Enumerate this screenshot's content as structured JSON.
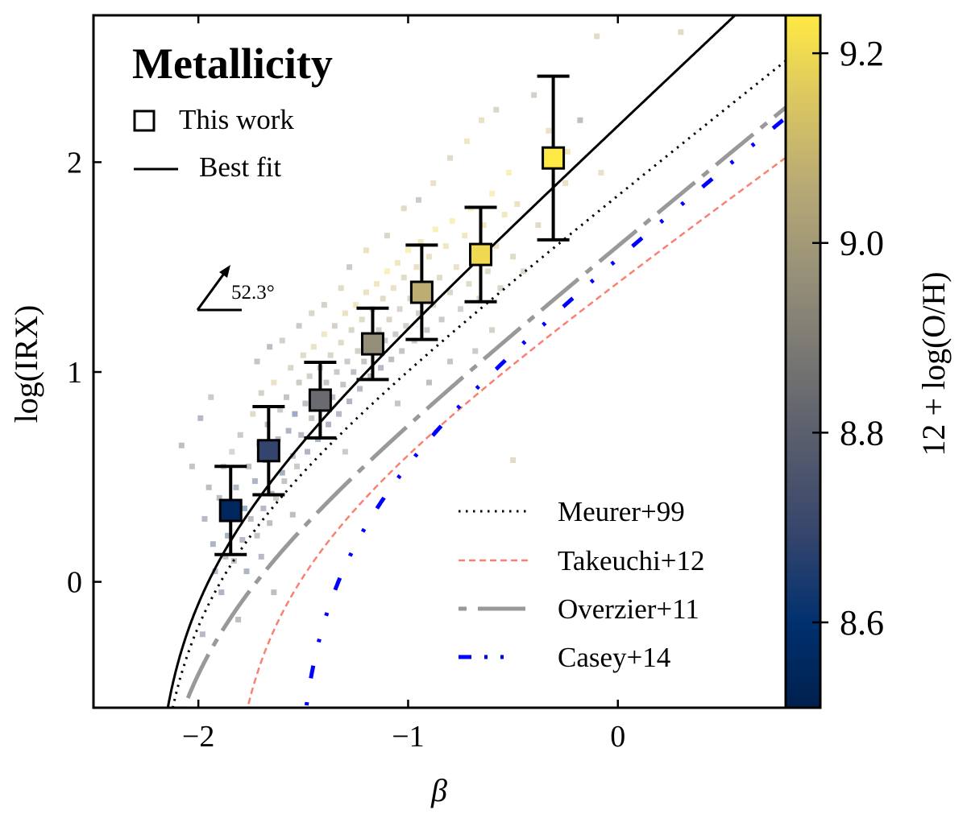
{
  "chart_data": {
    "type": "scatter",
    "title": "Metallicity",
    "xlabel": "β",
    "ylabel": "log(IRX)",
    "xlim": [
      -2.5,
      0.8
    ],
    "ylim": [
      -0.6,
      2.7
    ],
    "xticks": [
      {
        "value": -2,
        "label": "−2"
      },
      {
        "value": -1,
        "label": "−1"
      },
      {
        "value": 0,
        "label": "0"
      }
    ],
    "yticks": [
      {
        "value": 0,
        "label": "0"
      },
      {
        "value": 1,
        "label": "1"
      },
      {
        "value": 2,
        "label": "2"
      }
    ],
    "grid": false,
    "colorbar": {
      "label": "12 + log(O/H)",
      "colormap": "cividis",
      "range": [
        8.51,
        9.24
      ],
      "ticks": [
        {
          "value": 8.6,
          "label": "8.6"
        },
        {
          "value": 8.8,
          "label": "8.8"
        },
        {
          "value": 9.0,
          "label": "9.0"
        },
        {
          "value": 9.2,
          "label": "9.2"
        }
      ]
    },
    "annotation": {
      "text": "52.3°",
      "kind": "angle-arrow"
    },
    "binned_points": {
      "name": "This work",
      "marker": "square",
      "points": [
        {
          "beta": -1.846,
          "irx": 0.34,
          "err": 0.21,
          "metallicity": 8.55
        },
        {
          "beta": -1.665,
          "irx": 0.625,
          "err": 0.21,
          "metallicity": 8.69
        },
        {
          "beta": -1.419,
          "irx": 0.866,
          "err": 0.18,
          "metallicity": 8.84
        },
        {
          "beta": -1.169,
          "irx": 1.134,
          "err": 0.17,
          "metallicity": 8.96
        },
        {
          "beta": -0.935,
          "irx": 1.38,
          "err": 0.225,
          "metallicity": 9.07
        },
        {
          "beta": -0.654,
          "irx": 1.56,
          "err": 0.225,
          "metallicity": 9.2
        },
        {
          "beta": -0.308,
          "irx": 2.02,
          "err": 0.39,
          "metallicity": 9.24
        }
      ]
    },
    "curves": [
      {
        "name": "Best fit",
        "style": "solid",
        "color": "#000000",
        "a": 5.25,
        "b": 2.35,
        "c": 0.076
      },
      {
        "name": "Meurer+99",
        "style": "dotted",
        "color": "#000000",
        "a": 4.43,
        "b": 1.99,
        "c": 0.076
      },
      {
        "name": "Takeuchi+12",
        "style": "dashed",
        "color": "#fa8072",
        "a": 3.42,
        "b": 1.82,
        "c": 0.076
      },
      {
        "name": "Overzier+11",
        "style": "longdash-dot",
        "color": "#999999",
        "a": 4.64,
        "b": 2.05,
        "c": -0.25
      },
      {
        "name": "Casey+14",
        "style": "dash-dot-dot",
        "color": "#0000ff",
        "a": 3.16,
        "b": 2.04,
        "c": 0.3
      }
    ],
    "curve_model": "log(IRX) = log10(10^(0.4*(a + b*β)) - 1) + c",
    "legend_upper_left": [
      {
        "label": "This work",
        "symbol": "square"
      },
      {
        "label": "Best fit",
        "symbol": "solid-line"
      }
    ],
    "legend_lower_right": [
      {
        "label": "Meurer+99"
      },
      {
        "label": "Takeuchi+12"
      },
      {
        "label": "Overzier+11"
      },
      {
        "label": "Casey+14"
      }
    ],
    "scatter_seed": {
      "description": "individual galaxies (translucent squares, colored by metallicity)",
      "points": [
        [
          -1.97,
          0.3,
          8.75
        ],
        [
          -1.93,
          0.18,
          8.7
        ],
        [
          -1.9,
          0.4,
          8.8
        ],
        [
          -1.88,
          0.55,
          8.85
        ],
        [
          -1.86,
          0.22,
          8.65
        ],
        [
          -1.84,
          0.62,
          9.0
        ],
        [
          -1.82,
          0.45,
          8.72
        ],
        [
          -1.8,
          0.7,
          8.9
        ],
        [
          -1.78,
          0.35,
          8.6
        ],
        [
          -1.76,
          0.55,
          8.8
        ],
        [
          -1.74,
          0.8,
          9.05
        ],
        [
          -1.73,
          0.48,
          8.7
        ],
        [
          -1.71,
          0.66,
          8.85
        ],
        [
          -1.7,
          0.9,
          8.95
        ],
        [
          -1.68,
          0.58,
          8.6
        ],
        [
          -1.67,
          0.75,
          8.8
        ],
        [
          -1.65,
          0.42,
          8.7
        ],
        [
          -1.64,
          0.95,
          9.1
        ],
        [
          -1.62,
          0.68,
          8.75
        ],
        [
          -1.61,
          0.82,
          8.9
        ],
        [
          -1.6,
          0.52,
          8.65
        ],
        [
          -1.58,
          0.88,
          8.85
        ],
        [
          -1.57,
          0.72,
          8.7
        ],
        [
          -1.56,
          1.02,
          9.0
        ],
        [
          -1.55,
          0.6,
          8.8
        ],
        [
          -1.54,
          0.8,
          8.6
        ],
        [
          -1.52,
          0.95,
          8.9
        ],
        [
          -1.51,
          0.7,
          8.75
        ],
        [
          -1.5,
          1.08,
          9.05
        ],
        [
          -1.49,
          0.85,
          8.8
        ],
        [
          -1.48,
          0.62,
          8.7
        ],
        [
          -1.47,
          0.98,
          8.95
        ],
        [
          -1.46,
          0.78,
          8.85
        ],
        [
          -1.45,
          1.12,
          9.1
        ],
        [
          -1.44,
          0.9,
          8.8
        ],
        [
          -1.43,
          0.68,
          8.65
        ],
        [
          -1.42,
          1.02,
          8.9
        ],
        [
          -1.41,
          0.84,
          8.75
        ],
        [
          -1.4,
          1.18,
          9.15
        ],
        [
          -1.39,
          0.95,
          8.85
        ],
        [
          -1.38,
          0.75,
          8.7
        ],
        [
          -1.37,
          1.08,
          9.0
        ],
        [
          -1.36,
          0.88,
          8.8
        ],
        [
          -1.35,
          1.22,
          8.95
        ],
        [
          -1.34,
          1.0,
          8.9
        ],
        [
          -1.33,
          0.8,
          8.75
        ],
        [
          -1.32,
          1.14,
          9.05
        ],
        [
          -1.31,
          0.94,
          8.85
        ],
        [
          -1.3,
          1.28,
          9.1
        ],
        [
          -1.29,
          1.05,
          8.9
        ],
        [
          -1.28,
          0.86,
          8.7
        ],
        [
          -1.27,
          1.2,
          9.0
        ],
        [
          -1.26,
          1.0,
          8.8
        ],
        [
          -1.25,
          1.32,
          9.15
        ],
        [
          -1.24,
          1.1,
          8.95
        ],
        [
          -1.23,
          0.92,
          8.75
        ],
        [
          -1.22,
          1.25,
          9.05
        ],
        [
          -1.21,
          1.05,
          8.85
        ],
        [
          -1.2,
          1.38,
          9.1
        ],
        [
          -1.19,
          1.15,
          8.9
        ],
        [
          -1.18,
          0.98,
          8.8
        ],
        [
          -1.17,
          1.3,
          9.0
        ],
        [
          -1.16,
          1.1,
          8.85
        ],
        [
          -1.15,
          1.42,
          9.15
        ],
        [
          -1.14,
          1.2,
          8.95
        ],
        [
          -1.13,
          1.02,
          8.75
        ],
        [
          -1.12,
          1.35,
          9.05
        ],
        [
          -1.11,
          1.15,
          8.9
        ],
        [
          -1.1,
          1.48,
          9.2
        ],
        [
          -1.09,
          1.25,
          9.0
        ],
        [
          -1.08,
          1.06,
          8.8
        ],
        [
          -1.07,
          1.4,
          9.1
        ],
        [
          -1.06,
          1.18,
          8.9
        ],
        [
          -1.05,
          1.52,
          9.15
        ],
        [
          -1.04,
          1.3,
          9.0
        ],
        [
          -1.03,
          1.1,
          8.85
        ],
        [
          -1.02,
          1.45,
          9.05
        ],
        [
          -1.01,
          1.22,
          8.95
        ],
        [
          -1.0,
          1.58,
          9.2
        ],
        [
          -0.99,
          1.35,
          9.0
        ],
        [
          -0.97,
          1.15,
          8.85
        ],
        [
          -0.96,
          1.5,
          9.1
        ],
        [
          -0.95,
          1.28,
          8.95
        ],
        [
          -0.94,
          1.62,
          9.15
        ],
        [
          -0.92,
          1.4,
          9.05
        ],
        [
          -0.91,
          1.2,
          8.9
        ],
        [
          -0.9,
          1.55,
          9.1
        ],
        [
          -0.88,
          1.32,
          9.0
        ],
        [
          -0.87,
          1.68,
          9.2
        ],
        [
          -0.85,
          1.45,
          9.05
        ],
        [
          -0.84,
          1.25,
          8.9
        ],
        [
          -0.82,
          1.6,
          9.15
        ],
        [
          -0.8,
          1.38,
          9.0
        ],
        [
          -0.79,
          1.72,
          9.2
        ],
        [
          -0.77,
          1.5,
          9.1
        ],
        [
          -0.75,
          1.3,
          8.95
        ],
        [
          -0.73,
          1.65,
          9.15
        ],
        [
          -0.71,
          1.42,
          9.05
        ],
        [
          -0.7,
          1.78,
          9.2
        ],
        [
          -0.68,
          1.55,
          9.1
        ],
        [
          -0.66,
          1.35,
          9.0
        ],
        [
          -0.64,
          1.7,
          9.15
        ],
        [
          -0.62,
          1.48,
          9.05
        ],
        [
          -0.6,
          1.85,
          9.2
        ],
        [
          -0.58,
          1.6,
          9.1
        ],
        [
          -0.56,
          1.4,
          9.0
        ],
        [
          -0.54,
          1.75,
          9.15
        ],
        [
          -0.52,
          1.95,
          9.2
        ],
        [
          -0.5,
          1.55,
          9.05
        ],
        [
          -0.48,
          1.8,
          9.1
        ],
        [
          -1.95,
          0.45,
          8.8
        ],
        [
          -1.92,
          0.05,
          8.75
        ],
        [
          -1.89,
          -0.05,
          8.7
        ],
        [
          -1.87,
          0.12,
          8.8
        ],
        [
          -1.83,
          0.1,
          8.85
        ],
        [
          -1.81,
          -0.18,
          8.8
        ],
        [
          -1.79,
          0.2,
          8.75
        ],
        [
          -1.77,
          0.05,
          8.7
        ],
        [
          -1.75,
          0.3,
          8.8
        ],
        [
          -1.72,
          0.22,
          8.85
        ],
        [
          -1.69,
          0.35,
          8.75
        ],
        [
          -1.66,
          0.28,
          8.8
        ],
        [
          -1.63,
          0.4,
          8.9
        ],
        [
          -1.59,
          0.48,
          8.85
        ],
        [
          -1.53,
          0.55,
          8.9
        ],
        [
          -1.98,
          -0.25,
          8.75
        ],
        [
          -2.03,
          0.55,
          8.85
        ],
        [
          -2.08,
          0.65,
          8.8
        ],
        [
          -1.99,
          0.78,
          8.75
        ],
        [
          -1.94,
          0.88,
          8.9
        ],
        [
          -1.72,
          1.05,
          8.85
        ],
        [
          -1.66,
          1.12,
          8.8
        ],
        [
          -1.6,
          1.15,
          8.95
        ],
        [
          -1.52,
          1.22,
          8.9
        ],
        [
          -1.46,
          1.28,
          9.0
        ],
        [
          -1.4,
          1.32,
          8.95
        ],
        [
          -1.32,
          1.4,
          9.05
        ],
        [
          -1.28,
          1.5,
          8.9
        ],
        [
          -1.2,
          1.58,
          9.1
        ],
        [
          -1.1,
          1.65,
          9.0
        ],
        [
          -1.02,
          1.78,
          9.05
        ],
        [
          -0.95,
          1.82,
          8.9
        ],
        [
          -0.88,
          1.9,
          9.1
        ],
        [
          -0.8,
          2.02,
          9.05
        ],
        [
          -0.72,
          2.1,
          9.15
        ],
        [
          -0.65,
          2.2,
          9.1
        ],
        [
          -0.58,
          2.25,
          9.0
        ],
        [
          -0.4,
          2.32,
          8.95
        ],
        [
          -0.33,
          2.15,
          9.1
        ],
        [
          -0.25,
          1.9,
          9.1
        ],
        [
          -0.18,
          2.2,
          8.8
        ],
        [
          -0.1,
          2.6,
          9.05
        ],
        [
          -0.08,
          1.95,
          9.1
        ],
        [
          0.3,
          2.62,
          9.05
        ],
        [
          -0.24,
          2.05,
          9.15
        ],
        [
          -0.38,
          1.7,
          9.05
        ],
        [
          -0.45,
          1.48,
          9.0
        ],
        [
          -0.6,
          1.2,
          8.95
        ],
        [
          -0.8,
          1.05,
          8.85
        ],
        [
          -0.5,
          0.58,
          9.05
        ],
        [
          -0.68,
          1.1,
          8.9
        ],
        [
          -0.9,
          0.95,
          8.8
        ],
        [
          -1.05,
          0.85,
          8.85
        ],
        [
          -1.3,
          0.62,
          8.9
        ],
        [
          -1.55,
          0.32,
          8.8
        ],
        [
          -1.7,
          0.12,
          8.75
        ],
        [
          -1.64,
          -0.05,
          8.8
        ]
      ]
    }
  }
}
